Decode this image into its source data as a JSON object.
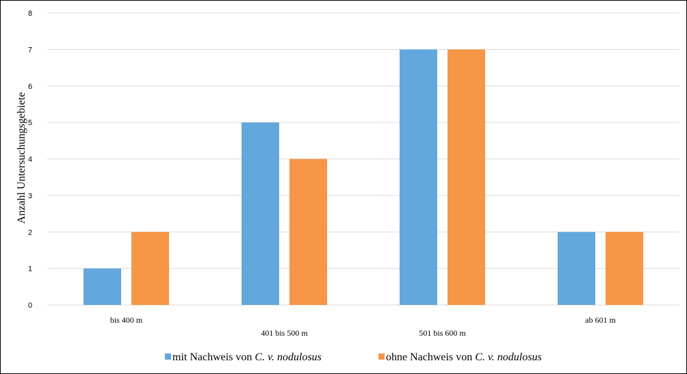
{
  "chart_data": {
    "type": "bar",
    "categories": [
      "bis 400 m",
      "401 bis 500 m",
      "501 bis 600 m",
      "ab 601 m"
    ],
    "series": [
      {
        "name_prefix": "mit Nachweis von ",
        "name_italic": "C. v. nodulosus",
        "color": "#62A8DD",
        "values": [
          1,
          5,
          7,
          2
        ]
      },
      {
        "name_prefix": "ohne Nachweis von ",
        "name_italic": "C. v. nodulosus",
        "color": "#F79646",
        "values": [
          2,
          4,
          7,
          2
        ]
      }
    ],
    "ylabel": "Anzahl Untersuchungsgebiete",
    "xlabel": "",
    "title": "",
    "ylim": [
      0,
      8
    ],
    "yticks": [
      "0",
      "1",
      "2",
      "3",
      "4",
      "5",
      "6",
      "7",
      "8"
    ],
    "grid": true,
    "gridline_color": "#D9D9D9",
    "legend_position": "bottom"
  }
}
